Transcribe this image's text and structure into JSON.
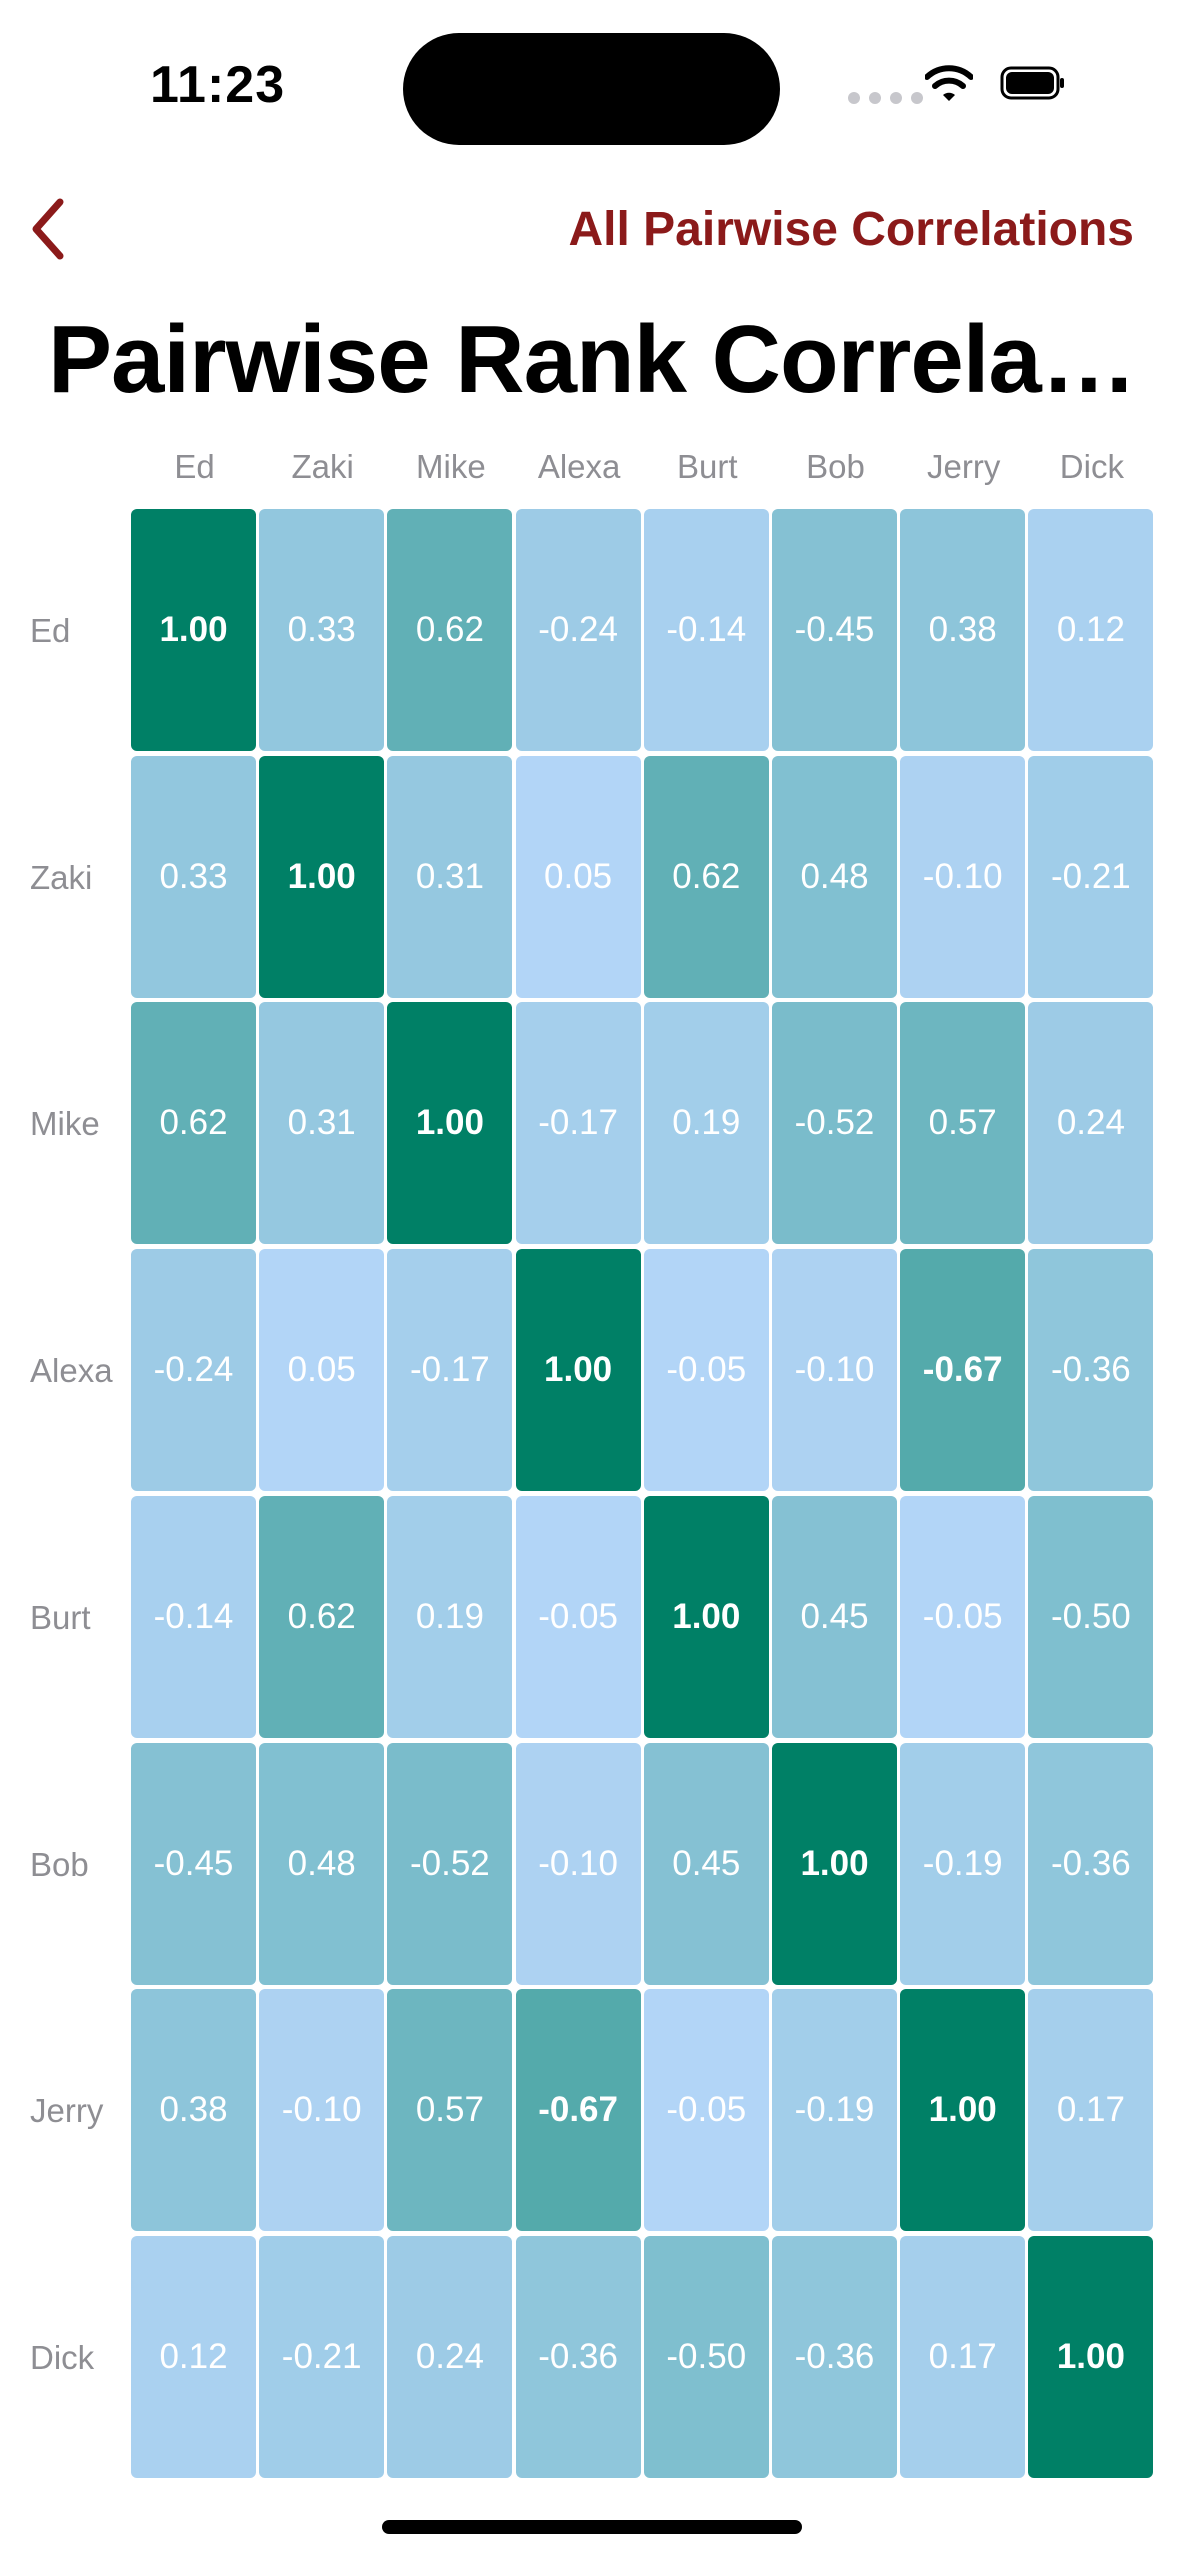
{
  "status_bar": {
    "time": "11:23",
    "signal_icon": "signal-dots-icon",
    "wifi_icon": "wifi-icon",
    "battery_icon": "battery-icon"
  },
  "nav": {
    "back_icon": "chevron-left-icon",
    "link_label": "All Pairwise Correlations",
    "accent_color": "#8b1a1a"
  },
  "title": "Pairwise Rank Correla…",
  "chart_data": {
    "type": "heatmap",
    "x_labels": [
      "Ed",
      "Zaki",
      "Mike",
      "Alexa",
      "Burt",
      "Bob",
      "Jerry",
      "Dick"
    ],
    "y_labels": [
      "Ed",
      "Zaki",
      "Mike",
      "Alexa",
      "Burt",
      "Bob",
      "Jerry",
      "Dick"
    ],
    "values": [
      [
        1.0,
        0.33,
        0.62,
        -0.24,
        -0.14,
        -0.45,
        0.38,
        0.12
      ],
      [
        0.33,
        1.0,
        0.31,
        0.05,
        0.62,
        0.48,
        -0.1,
        -0.21
      ],
      [
        0.62,
        0.31,
        1.0,
        -0.17,
        0.19,
        -0.52,
        0.57,
        0.24
      ],
      [
        -0.24,
        0.05,
        -0.17,
        1.0,
        -0.05,
        -0.1,
        -0.67,
        -0.36
      ],
      [
        -0.14,
        0.62,
        0.19,
        -0.05,
        1.0,
        0.45,
        -0.05,
        -0.5
      ],
      [
        -0.45,
        0.48,
        -0.52,
        -0.1,
        0.45,
        1.0,
        -0.19,
        -0.36
      ],
      [
        0.38,
        -0.1,
        0.57,
        -0.67,
        -0.05,
        -0.19,
        1.0,
        0.17
      ],
      [
        0.12,
        -0.21,
        0.24,
        -0.36,
        -0.5,
        -0.36,
        0.17,
        1.0
      ]
    ],
    "labels": [
      [
        "1.00",
        "0.33",
        "0.62",
        "-0.24",
        "-0.14",
        "-0.45",
        "0.38",
        "0.12"
      ],
      [
        "0.33",
        "1.00",
        "0.31",
        "0.05",
        "0.62",
        "0.48",
        "-0.10",
        "-0.21"
      ],
      [
        "0.62",
        "0.31",
        "1.00",
        "-0.17",
        "0.19",
        "-0.52",
        "0.57",
        "0.24"
      ],
      [
        "-0.24",
        "0.05",
        "-0.17",
        "1.00",
        "-0.05",
        "-0.10",
        "-0.67",
        "-0.36"
      ],
      [
        "-0.14",
        "0.62",
        "0.19",
        "-0.05",
        "1.00",
        "0.45",
        "-0.05",
        "-0.50"
      ],
      [
        "-0.45",
        "0.48",
        "-0.52",
        "-0.10",
        "0.45",
        "1.00",
        "-0.19",
        "-0.36"
      ],
      [
        "0.38",
        "-0.10",
        "0.57",
        "-0.67",
        "-0.05",
        "-0.19",
        "1.00",
        "0.17"
      ],
      [
        "0.12",
        "-0.21",
        "0.24",
        "-0.36",
        "-0.50",
        "-0.36",
        "0.17",
        "1.00"
      ]
    ],
    "color_scale": {
      "low": "#b8d7fb",
      "mid": "#7fbfcf",
      "high": "#008066",
      "domain": [
        0,
        1
      ],
      "uses_absolute_value": true
    },
    "bold_threshold": 0.65,
    "grid": false
  }
}
